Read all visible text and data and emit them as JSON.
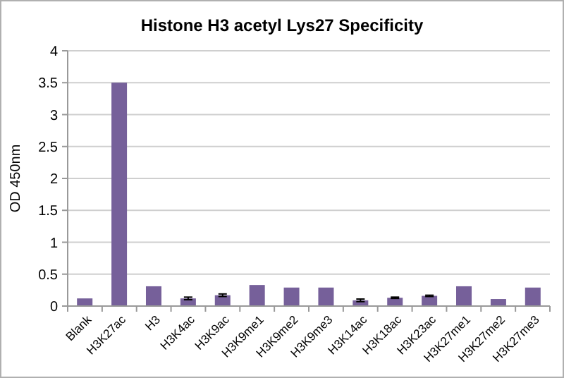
{
  "chart_data": {
    "type": "bar",
    "title": "Histone H3 acetyl Lys27 Specificity",
    "ylabel": "OD 450nm",
    "categories": [
      "Blank",
      "H3K27ac",
      "H3",
      "H3K4ac",
      "H3K9ac",
      "H3K9me1",
      "H3K9me2",
      "H3K9me3",
      "H3K14ac",
      "H3K18ac",
      "H3K23ac",
      "H3K27me1",
      "H3K27me2",
      "H3K27me3"
    ],
    "values": [
      0.12,
      3.5,
      0.31,
      0.12,
      0.17,
      0.33,
      0.29,
      0.29,
      0.09,
      0.13,
      0.16,
      0.31,
      0.11,
      0.29
    ],
    "errors": [
      null,
      null,
      null,
      0.02,
      0.02,
      null,
      null,
      null,
      0.02,
      0.01,
      0.01,
      null,
      null,
      null
    ],
    "color": "#76609a",
    "ylim": [
      0,
      4
    ],
    "yticks": [
      0,
      0.5,
      1,
      1.5,
      2,
      2.5,
      3,
      3.5,
      4
    ],
    "grid": "y"
  }
}
